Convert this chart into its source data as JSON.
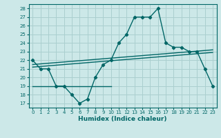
{
  "xlabel": "Humidex (Indice chaleur)",
  "ylabel": "",
  "bg_color": "#cce8e8",
  "grid_color": "#aacfcf",
  "line_color": "#006666",
  "xlim": [
    -0.5,
    23.5
  ],
  "ylim": [
    16.5,
    28.5
  ],
  "yticks": [
    17,
    18,
    19,
    20,
    21,
    22,
    23,
    24,
    25,
    26,
    27,
    28
  ],
  "xticks": [
    0,
    1,
    2,
    3,
    4,
    5,
    6,
    7,
    8,
    9,
    10,
    11,
    12,
    13,
    14,
    15,
    16,
    17,
    18,
    19,
    20,
    21,
    22,
    23
  ],
  "main_y": [
    22,
    21,
    21,
    19,
    19,
    18,
    17,
    17.5,
    20,
    21.5,
    22,
    24,
    25,
    27,
    27,
    27,
    28,
    24,
    23.5,
    23.5,
    23,
    23,
    21,
    19
  ],
  "horiz_line_x": [
    0,
    10
  ],
  "horiz_line_y": [
    19,
    19
  ],
  "trend1_x": [
    0,
    23
  ],
  "trend1_y": [
    21.5,
    23.2
  ],
  "trend2_x": [
    0,
    23
  ],
  "trend2_y": [
    21.2,
    22.9
  ]
}
